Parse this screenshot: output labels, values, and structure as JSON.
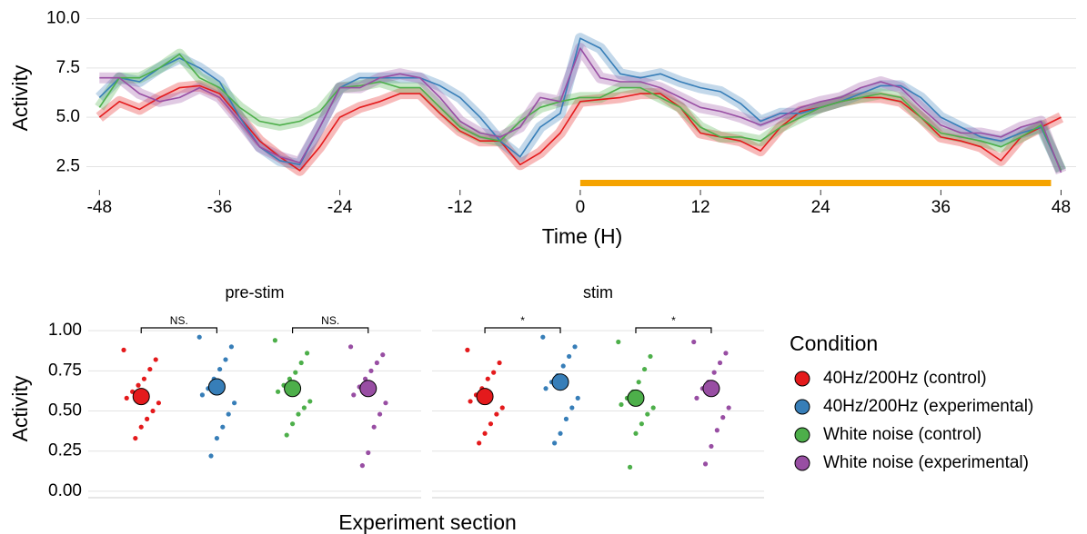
{
  "chart_data": [
    {
      "type": "line",
      "xlabel": "Time (H)",
      "ylabel": "Activity",
      "xlim": [
        -49.3,
        49.5
      ],
      "ylim": [
        1.6,
        10.3
      ],
      "xticks": [
        -48,
        -36,
        -24,
        -12,
        0,
        12,
        24,
        36,
        48
      ],
      "yticks": [
        {
          "value": 2.5,
          "label": "2.5"
        },
        {
          "value": 5,
          "label": "5.0"
        },
        {
          "value": 7.5,
          "label": "7.5"
        },
        {
          "value": 10,
          "label": "10.0"
        }
      ],
      "grid": true,
      "span": [
        0,
        47
      ],
      "span_color": "#f5a300",
      "x": [
        -48,
        -46,
        -44,
        -42,
        -40,
        -38,
        -36,
        -34,
        -32,
        -30,
        -28,
        -26,
        -24,
        -22,
        -20,
        -18,
        -16,
        -14,
        -12,
        -10,
        -8,
        -6,
        -4,
        -2,
        0,
        2,
        4,
        6,
        8,
        10,
        12,
        14,
        16,
        18,
        20,
        22,
        24,
        26,
        28,
        30,
        32,
        34,
        36,
        38,
        40,
        42,
        44,
        46,
        48
      ],
      "series": [
        {
          "color": "#e41a1c",
          "values": [
            5.0,
            5.8,
            5.4,
            6.0,
            6.5,
            6.6,
            6.2,
            5.0,
            3.8,
            3.0,
            2.3,
            3.5,
            5.0,
            5.5,
            5.8,
            6.2,
            6.2,
            5.2,
            4.3,
            3.8,
            3.8,
            2.6,
            3.2,
            4.2,
            5.8,
            5.9,
            6.0,
            6.2,
            6.2,
            5.5,
            4.2,
            4.0,
            3.8,
            3.3,
            4.5,
            5.3,
            5.5,
            5.8,
            6.0,
            6.0,
            5.8,
            5.0,
            4.0,
            3.8,
            3.5,
            2.8,
            4.0,
            4.5,
            5.0
          ]
        },
        {
          "color": "#377eb8",
          "values": [
            6.0,
            7.0,
            6.8,
            7.5,
            8.0,
            7.5,
            6.8,
            5.0,
            3.5,
            2.8,
            2.6,
            4.5,
            6.5,
            7.0,
            7.0,
            7.0,
            7.0,
            6.6,
            6.0,
            5.0,
            3.8,
            3.0,
            4.5,
            5.2,
            9.0,
            8.5,
            7.2,
            7.0,
            7.2,
            6.8,
            6.5,
            6.3,
            5.7,
            4.8,
            5.2,
            5.2,
            5.5,
            5.8,
            6.2,
            6.6,
            6.6,
            6.0,
            5.0,
            4.5,
            4.0,
            3.8,
            4.2,
            4.5,
            2.3
          ]
        },
        {
          "color": "#4daf4a",
          "values": [
            5.5,
            7.0,
            7.0,
            7.5,
            8.2,
            7.0,
            6.5,
            5.5,
            4.8,
            4.6,
            4.8,
            5.3,
            6.5,
            6.6,
            6.8,
            6.5,
            6.5,
            5.5,
            4.5,
            4.0,
            3.8,
            4.8,
            5.5,
            5.8,
            6.0,
            6.0,
            6.5,
            6.5,
            6.0,
            5.5,
            4.5,
            4.0,
            4.0,
            3.8,
            4.5,
            5.0,
            5.5,
            5.8,
            6.0,
            6.2,
            6.0,
            5.0,
            4.2,
            4.0,
            3.8,
            3.5,
            4.0,
            4.6,
            2.3
          ]
        },
        {
          "color": "#984ea3",
          "values": [
            7.0,
            7.0,
            6.2,
            5.8,
            6.0,
            6.5,
            6.0,
            4.8,
            3.5,
            3.0,
            2.7,
            4.5,
            6.5,
            6.5,
            7.0,
            7.2,
            7.0,
            6.0,
            4.8,
            4.2,
            4.0,
            4.5,
            6.0,
            5.8,
            8.5,
            7.0,
            6.8,
            6.8,
            6.5,
            6.0,
            5.5,
            5.3,
            5.0,
            4.6,
            5.0,
            5.5,
            5.8,
            6.0,
            6.5,
            6.8,
            6.5,
            5.5,
            4.6,
            4.2,
            4.2,
            4.0,
            4.5,
            4.8,
            2.2
          ]
        }
      ]
    },
    {
      "type": "strip",
      "xlabel": "Experiment section",
      "ylabel": "Activity",
      "ylim": [
        -0.04,
        1.08
      ],
      "yticks": [
        {
          "value": 0,
          "label": "0.00"
        },
        {
          "value": 0.25,
          "label": "0.25"
        },
        {
          "value": 0.5,
          "label": "0.50"
        },
        {
          "value": 0.75,
          "label": "0.75"
        },
        {
          "value": 1,
          "label": "1.00"
        }
      ],
      "grid": true,
      "legend_title": "Condition",
      "legend_position": "right",
      "series": [
        {
          "name": "40Hz/200Hz (control)",
          "color": "#e41a1c"
        },
        {
          "name": "40Hz/200Hz (experimental)",
          "color": "#377eb8"
        },
        {
          "name": "White noise (control)",
          "color": "#4daf4a"
        },
        {
          "name": "White noise (experimental)",
          "color": "#984ea3"
        }
      ],
      "panels": [
        {
          "title": "pre-stim",
          "comparison_labels": [
            "NS.",
            "NS."
          ],
          "means": [
            0.59,
            0.65,
            0.64,
            0.64
          ],
          "points": [
            [
              0.88,
              0.82,
              0.76,
              0.7,
              0.66,
              0.62,
              0.58,
              0.55,
              0.5,
              0.45,
              0.4,
              0.33
            ],
            [
              0.96,
              0.9,
              0.82,
              0.76,
              0.7,
              0.64,
              0.6,
              0.55,
              0.48,
              0.4,
              0.33,
              0.22
            ],
            [
              0.94,
              0.86,
              0.8,
              0.74,
              0.7,
              0.66,
              0.62,
              0.56,
              0.52,
              0.48,
              0.42,
              0.35
            ],
            [
              0.9,
              0.85,
              0.8,
              0.75,
              0.7,
              0.65,
              0.6,
              0.55,
              0.48,
              0.4,
              0.24,
              0.16
            ]
          ]
        },
        {
          "title": "stim",
          "comparison_labels": [
            "*",
            "*"
          ],
          "means": [
            0.59,
            0.68,
            0.58,
            0.64
          ],
          "points": [
            [
              0.88,
              0.8,
              0.74,
              0.7,
              0.64,
              0.6,
              0.56,
              0.52,
              0.48,
              0.42,
              0.36,
              0.3
            ],
            [
              0.96,
              0.9,
              0.84,
              0.78,
              0.72,
              0.68,
              0.64,
              0.58,
              0.52,
              0.45,
              0.36,
              0.3
            ],
            [
              0.93,
              0.84,
              0.76,
              0.68,
              0.62,
              0.58,
              0.54,
              0.52,
              0.48,
              0.42,
              0.36,
              0.15
            ],
            [
              0.93,
              0.86,
              0.8,
              0.74,
              0.68,
              0.64,
              0.58,
              0.52,
              0.46,
              0.38,
              0.28,
              0.17
            ]
          ]
        }
      ]
    }
  ]
}
